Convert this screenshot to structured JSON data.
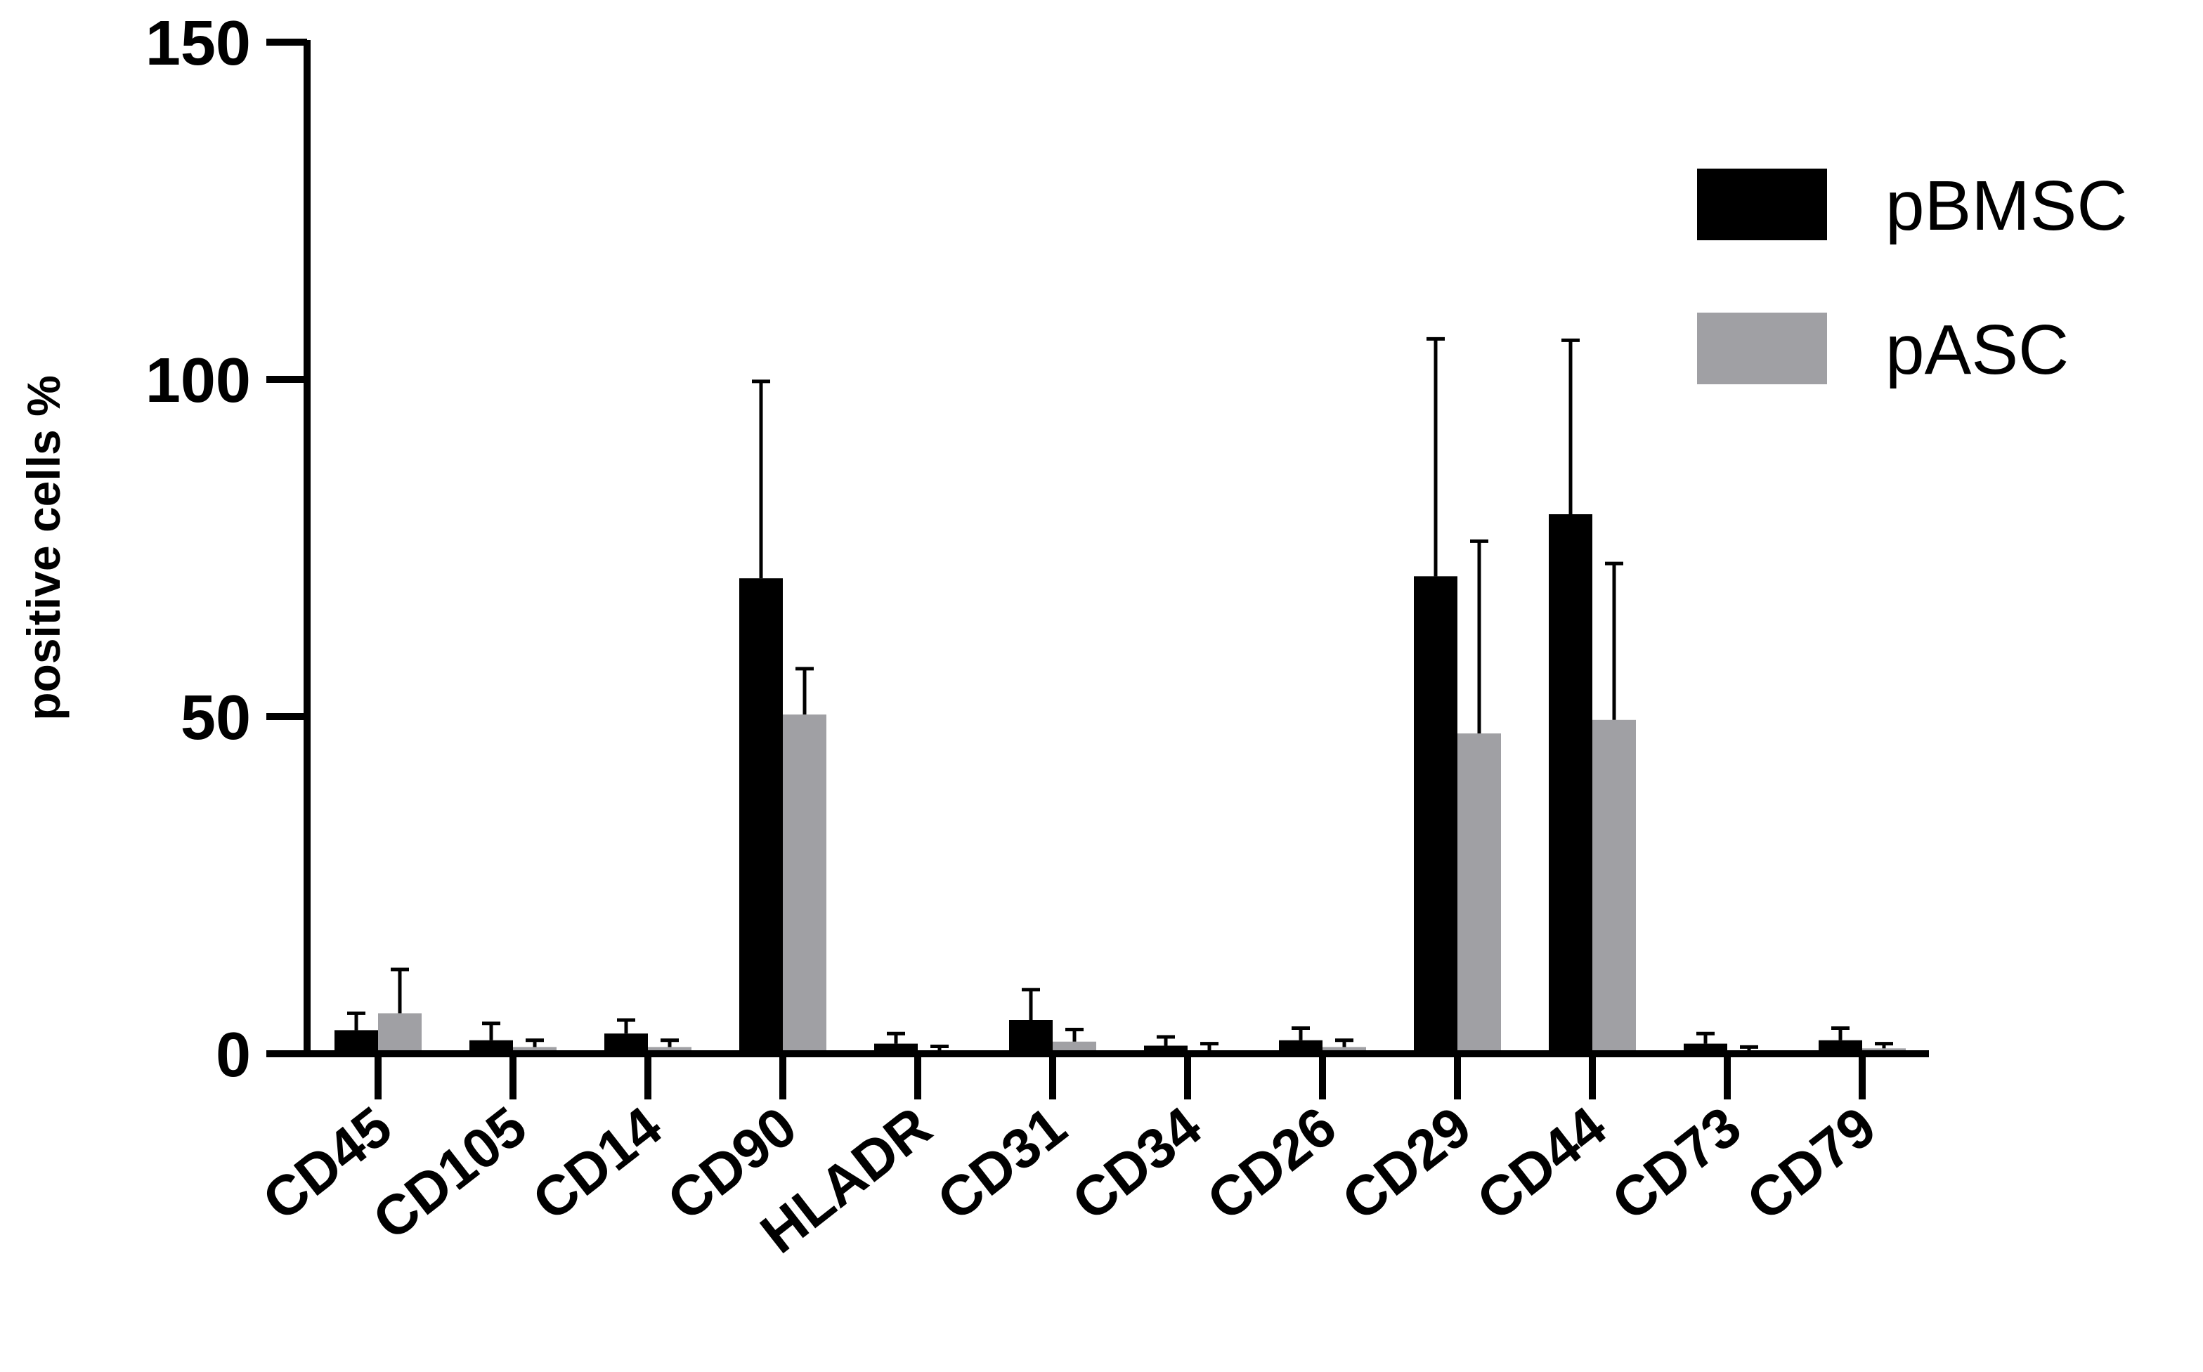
{
  "chart_data": {
    "type": "bar",
    "title": "",
    "xlabel": "",
    "ylabel": "positive cells %",
    "ylim": [
      0,
      150
    ],
    "yticks": [
      0,
      50,
      100,
      150
    ],
    "grid": false,
    "legend_position": "top-right",
    "categories": [
      "CD45",
      "CD105",
      "CD14",
      "CD90",
      "HLADR",
      "CD31",
      "CD34",
      "CD26",
      "CD29",
      "CD44",
      "CD73",
      "CD79"
    ],
    "series": [
      {
        "name": "pBMSC",
        "color": "#000000",
        "values": [
          3.5,
          2,
          3,
          70.5,
          1.5,
          5,
          1.2,
          2,
          70.8,
          80,
          1.5,
          2
        ],
        "errors": [
          2.5,
          2.5,
          2,
          29.2,
          1.5,
          4.5,
          1.3,
          1.8,
          35.2,
          25.8,
          1.5,
          1.8
        ]
      },
      {
        "name": "pASC",
        "color": "#A0A0A4",
        "values": [
          6,
          1,
          1,
          50.3,
          0.5,
          1.8,
          0.5,
          1,
          47.5,
          49.5,
          0.5,
          0.8
        ],
        "errors": [
          6.5,
          1,
          1,
          6.8,
          0.6,
          1.8,
          1,
          1,
          28.5,
          23.2,
          0.5,
          0.7
        ]
      }
    ]
  }
}
